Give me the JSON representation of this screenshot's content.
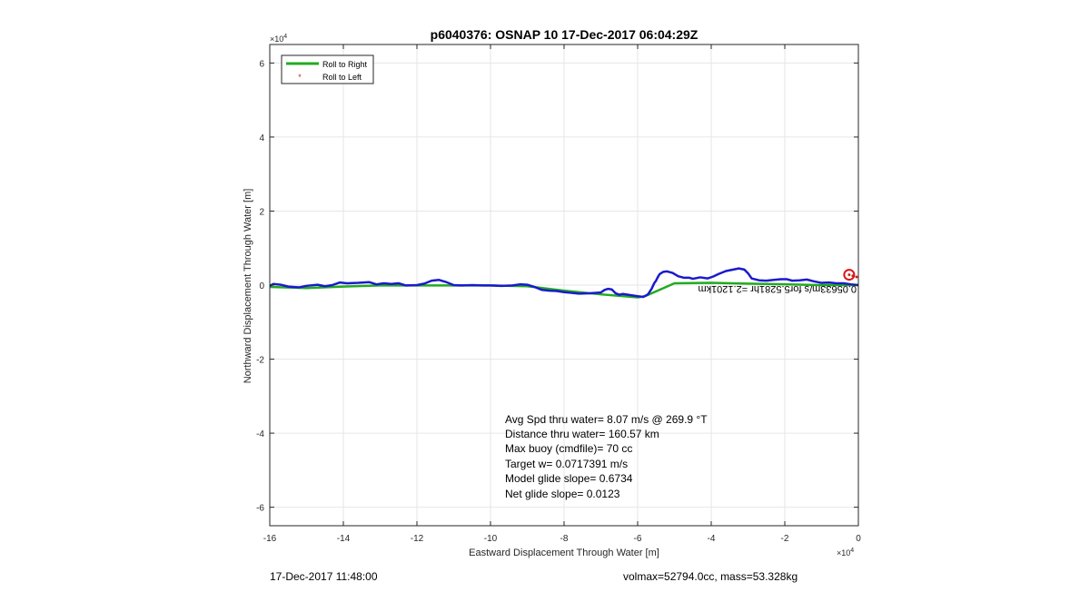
{
  "chart_data": {
    "type": "line",
    "title": "p6040376: OSNAP 10 17-Dec-2017 06:04:29Z",
    "xlabel": "Eastward Displacement Through Water [m]",
    "ylabel": "Northward Displacement Through Water [m]",
    "x_exponent_label": "×10",
    "x_exponent_power": "4",
    "y_exponent_label": "×10",
    "y_exponent_power": "4",
    "xlim": [
      -16,
      0
    ],
    "ylim": [
      -6.5,
      6.5
    ],
    "xticks": [
      -16,
      -14,
      -12,
      -10,
      -8,
      -6,
      -4,
      -2,
      0
    ],
    "xtick_labels": [
      "-16",
      "-14",
      "-12",
      "-10",
      "-8",
      "-6",
      "-4",
      "-2",
      "0"
    ],
    "yticks": [
      -6,
      -4,
      -2,
      0,
      2,
      4,
      6
    ],
    "ytick_labels": [
      "-6",
      "-4",
      "-2",
      "0",
      "2",
      "4",
      "6"
    ],
    "grid": true,
    "legend_placement": "top-left",
    "series": [
      {
        "name": "Roll to Right",
        "color": "#22aa22",
        "x": [
          -16.0,
          -15.0,
          -14.0,
          -13.0,
          -12.0,
          -11.0,
          -10.0,
          -9.0,
          -8.0,
          -7.0,
          -6.0,
          -5.8,
          -5.0,
          -4.0,
          -3.0,
          -2.0,
          -1.0,
          0.0
        ],
        "y": [
          -0.05,
          -0.08,
          -0.04,
          -0.01,
          -0.01,
          -0.01,
          -0.01,
          -0.03,
          -0.15,
          -0.25,
          -0.33,
          -0.3,
          0.05,
          0.06,
          0.04,
          0.02,
          0.0,
          0.0
        ]
      },
      {
        "name": "Roll to Left",
        "color": "#cc2222",
        "x": [
          -0.25,
          -0.15,
          -0.05
        ],
        "y": [
          0.28,
          0.25,
          0.22
        ]
      },
      {
        "name": "",
        "color": "#1a1acc",
        "x": [
          -16.0,
          -15.9,
          -15.7,
          -15.5,
          -15.2,
          -15.0,
          -14.7,
          -14.5,
          -14.3,
          -14.1,
          -13.9,
          -13.6,
          -13.3,
          -13.1,
          -12.9,
          -12.7,
          -12.5,
          -12.3,
          -12.0,
          -11.8,
          -11.6,
          -11.4,
          -11.2,
          -11.0,
          -10.8,
          -10.5,
          -10.2,
          -10.0,
          -9.7,
          -9.4,
          -9.2,
          -9.0,
          -8.8,
          -8.6,
          -8.4,
          -8.2,
          -8.0,
          -7.8,
          -7.6,
          -7.3,
          -7.0,
          -6.9,
          -6.8,
          -6.7,
          -6.6,
          -6.5,
          -6.4,
          -6.2,
          -6.0,
          -5.85,
          -5.72,
          -5.62,
          -5.55,
          -5.5,
          -5.45,
          -5.4,
          -5.3,
          -5.2,
          -5.05,
          -4.9,
          -4.75,
          -4.6,
          -4.5,
          -4.3,
          -4.1,
          -3.95,
          -3.8,
          -3.6,
          -3.4,
          -3.25,
          -3.1,
          -3.0,
          -2.9,
          -2.7,
          -2.5,
          -2.3,
          -2.1,
          -1.95,
          -1.8,
          -1.6,
          -1.4,
          -1.2,
          -1.0,
          -0.8,
          -0.6,
          -0.4,
          -0.2,
          0.0
        ],
        "y": [
          -0.02,
          0.03,
          0.01,
          -0.04,
          -0.06,
          -0.02,
          0.01,
          -0.03,
          0.0,
          0.07,
          0.05,
          0.06,
          0.08,
          0.02,
          0.05,
          0.03,
          0.05,
          -0.01,
          0.0,
          0.04,
          0.12,
          0.14,
          0.08,
          0.0,
          -0.01,
          0.0,
          -0.01,
          -0.01,
          -0.02,
          -0.01,
          0.02,
          0.01,
          -0.05,
          -0.13,
          -0.15,
          -0.16,
          -0.19,
          -0.21,
          -0.23,
          -0.22,
          -0.2,
          -0.13,
          -0.1,
          -0.12,
          -0.22,
          -0.26,
          -0.24,
          -0.27,
          -0.3,
          -0.32,
          -0.25,
          -0.1,
          0.05,
          0.12,
          0.22,
          0.3,
          0.36,
          0.37,
          0.33,
          0.24,
          0.2,
          0.2,
          0.17,
          0.21,
          0.18,
          0.23,
          0.3,
          0.38,
          0.42,
          0.45,
          0.42,
          0.32,
          0.18,
          0.13,
          0.12,
          0.14,
          0.16,
          0.16,
          0.12,
          0.13,
          0.15,
          0.1,
          0.06,
          0.07,
          0.05,
          0.05,
          0.02,
          0.0
        ]
      }
    ],
    "markers": [
      {
        "name": "start-marker",
        "x": -0.25,
        "y": 0.28,
        "color": "#dd1111"
      }
    ],
    "annotations": [
      "Avg Spd thru water=  8.07 m/s @ 269.9 °T",
      "Distance thru water= 160.57 km",
      "Max buoy (cmdfile)= 70 cc",
      "Target w= 0.0717391 m/s",
      "Model glide slope= 0.6734",
      "Net glide slope= 0.0123"
    ],
    "flipped_text": "0.05633m/s for5.5281hr =2.1201km"
  },
  "footer": {
    "timestamp": "17-Dec-2017 11:48:00",
    "summary": "volmax=52794.0cc, mass=53.328kg"
  }
}
